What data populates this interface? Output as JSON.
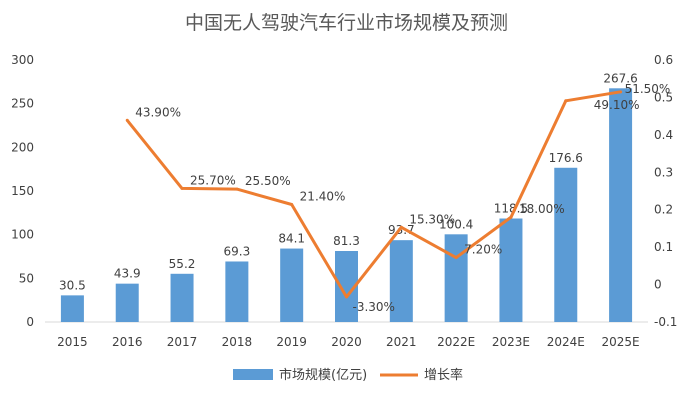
{
  "chart_data": {
    "type": "bar+line",
    "title": "中国无人驾驶汽车行业市场规模及预测",
    "categories": [
      "2015",
      "2016",
      "2017",
      "2018",
      "2019",
      "2020",
      "2021",
      "2022E",
      "2023E",
      "2024E",
      "2025E"
    ],
    "series": [
      {
        "name": "市场规模(亿元)",
        "type": "bar",
        "axis": "left",
        "color": "#5b9bd5",
        "values": [
          30.5,
          43.9,
          55.2,
          69.3,
          84.1,
          81.3,
          93.7,
          100.4,
          118.5,
          176.6,
          267.6
        ],
        "labels": [
          "30.5",
          "43.9",
          "55.2",
          "69.3",
          "84.1",
          "81.3",
          "93.7",
          "100.4",
          "118.5",
          "176.6",
          "267.6"
        ]
      },
      {
        "name": "增长率",
        "type": "line",
        "axis": "right",
        "color": "#ed7d31",
        "values": [
          null,
          0.439,
          0.257,
          0.255,
          0.214,
          -0.033,
          0.153,
          0.072,
          0.18,
          0.491,
          0.515
        ],
        "labels": [
          "",
          "43.90%",
          "25.70%",
          "25.50%",
          "21.40%",
          "-3.30%",
          "15.30%",
          "7.20%",
          "18.00%",
          "49.10%",
          "51.50%"
        ]
      }
    ],
    "y_left": {
      "min": 0,
      "max": 300,
      "ticks": [
        "0",
        "50",
        "100",
        "150",
        "200",
        "250",
        "300"
      ]
    },
    "y_right": {
      "min": -0.1,
      "max": 0.6,
      "ticks": [
        "-0.1",
        "0",
        "0.1",
        "0.2",
        "0.3",
        "0.4",
        "0.5",
        "0.6"
      ]
    },
    "grid": false,
    "legend": "bottom"
  }
}
